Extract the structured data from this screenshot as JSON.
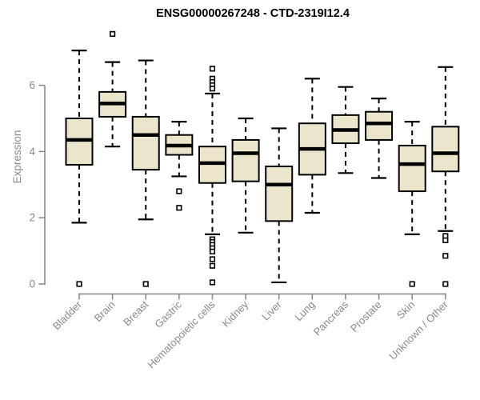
{
  "chart_data": {
    "type": "boxplot",
    "title": "ENSG00000267248 - CTD-2319I12.4",
    "ylabel": "Expression",
    "xlabel": "",
    "ylim": [
      0,
      7.8
    ],
    "yticks": [
      0,
      2,
      4,
      6
    ],
    "grid": false,
    "legend": null,
    "categories": [
      "Bladder",
      "Brain",
      "Breast",
      "Gastric",
      "Hematopoietic cells",
      "Kidney",
      "Liver",
      "Lung",
      "Pancreas",
      "Prostate",
      "Skin",
      "Unknown / Other"
    ],
    "boxes": [
      {
        "category": "Bladder",
        "whisker_low": 1.85,
        "q1": 3.6,
        "median": 4.35,
        "q3": 5.0,
        "whisker_high": 7.05,
        "outliers": [
          0
        ]
      },
      {
        "category": "Brain",
        "whisker_low": 4.15,
        "q1": 5.05,
        "median": 5.45,
        "q3": 5.8,
        "whisker_high": 6.7,
        "outliers": [
          7.55
        ]
      },
      {
        "category": "Breast",
        "whisker_low": 1.95,
        "q1": 3.45,
        "median": 4.5,
        "q3": 5.05,
        "whisker_high": 6.75,
        "outliers": [
          0
        ]
      },
      {
        "category": "Gastric",
        "whisker_low": 3.25,
        "q1": 3.9,
        "median": 4.18,
        "q3": 4.5,
        "whisker_high": 4.9,
        "outliers": [
          2.8,
          2.3
        ]
      },
      {
        "category": "Hematopoietic cells",
        "whisker_low": 1.5,
        "q1": 3.05,
        "median": 3.65,
        "q3": 4.15,
        "whisker_high": 5.75,
        "outliers": [
          6.5,
          6.2,
          6.1,
          6.0,
          5.9,
          1.35,
          1.27,
          1.18,
          1.08,
          0.98,
          0.75,
          0.55,
          0.05
        ]
      },
      {
        "category": "Kidney",
        "whisker_low": 1.55,
        "q1": 3.1,
        "median": 3.95,
        "q3": 4.35,
        "whisker_high": 5.0,
        "outliers": []
      },
      {
        "category": "Liver",
        "whisker_low": 0.05,
        "q1": 1.9,
        "median": 3.0,
        "q3": 3.55,
        "whisker_high": 4.7,
        "outliers": []
      },
      {
        "category": "Lung",
        "whisker_low": 2.15,
        "q1": 3.3,
        "median": 4.08,
        "q3": 4.85,
        "whisker_high": 6.2,
        "outliers": []
      },
      {
        "category": "Pancreas",
        "whisker_low": 3.35,
        "q1": 4.25,
        "median": 4.65,
        "q3": 5.1,
        "whisker_high": 5.95,
        "outliers": []
      },
      {
        "category": "Prostate",
        "whisker_low": 3.2,
        "q1": 4.35,
        "median": 4.85,
        "q3": 5.2,
        "whisker_high": 5.6,
        "outliers": []
      },
      {
        "category": "Skin",
        "whisker_low": 1.5,
        "q1": 2.8,
        "median": 3.62,
        "q3": 4.18,
        "whisker_high": 4.9,
        "outliers": [
          0
        ]
      },
      {
        "category": "Unknown / Other",
        "whisker_low": 1.6,
        "q1": 3.4,
        "median": 3.95,
        "q3": 4.75,
        "whisker_high": 6.55,
        "outliers": [
          1.45,
          1.32,
          0.85,
          0
        ]
      }
    ],
    "style": {
      "box_fill": "#EBE6CB",
      "box_border": "#000000",
      "median_color": "#000000",
      "whisker_color": "#000000",
      "outlier_fill": "#ffffff",
      "outlier_border": "#000000",
      "axis_color": "#858585",
      "tick_label_color": "#8a8a8a",
      "title_color": "#000000",
      "background": "#ffffff"
    }
  }
}
